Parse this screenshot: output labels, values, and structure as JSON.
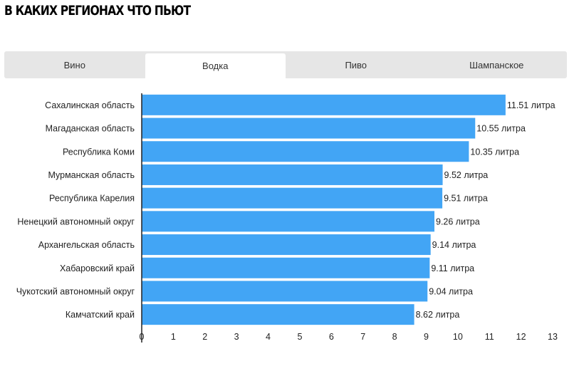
{
  "header": {
    "title": "В КАКИХ РЕГИОНАХ ЧТО ПЬЮТ"
  },
  "tabs": [
    {
      "label": "Вино",
      "active": false
    },
    {
      "label": "Водка",
      "active": true
    },
    {
      "label": "Пиво",
      "active": false
    },
    {
      "label": "Шампанское",
      "active": false
    }
  ],
  "colors": {
    "bar": "#42a5f5",
    "axis": "#222222"
  },
  "chart_data": {
    "type": "bar",
    "orientation": "horizontal",
    "categories": [
      "Сахалинская область",
      "Магаданская область",
      "Республика Коми",
      "Мурманская область",
      "Республика Карелия",
      "Ненецкий автономный округ",
      "Архангельская область",
      "Хабаровский край",
      "Чукотский автономный округ",
      "Камчатский край"
    ],
    "values": [
      11.51,
      10.55,
      10.35,
      9.52,
      9.51,
      9.26,
      9.14,
      9.11,
      9.04,
      8.62
    ],
    "data_labels": [
      "11.51 литра",
      "10.55 литра",
      "10.35 литра",
      "9.52 литра",
      "9.51 литра",
      "9.26 литра",
      "9.14 литра",
      "9.11 литра",
      "9.04 литра",
      "8.62 литра"
    ],
    "xlim": [
      0,
      13
    ],
    "xticks": [
      0,
      1,
      2,
      3,
      4,
      5,
      6,
      7,
      8,
      9,
      10,
      11,
      12,
      13
    ],
    "grid": false
  }
}
